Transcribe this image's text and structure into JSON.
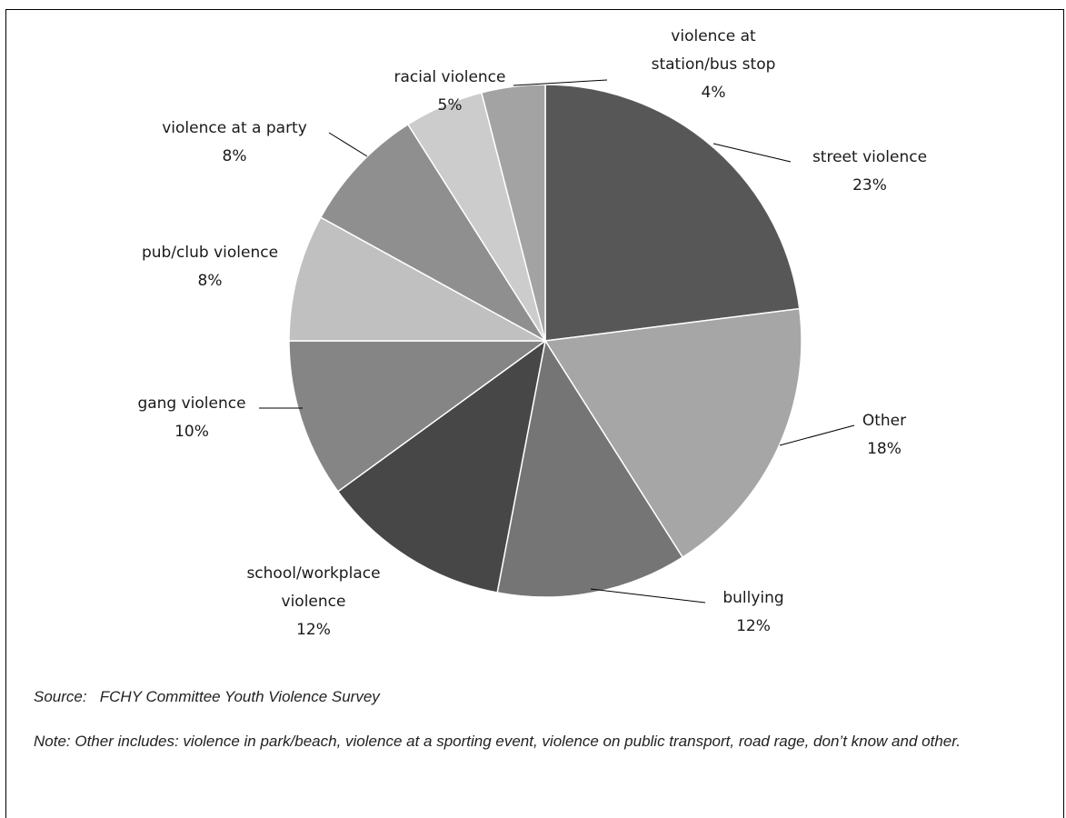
{
  "chart_data": {
    "type": "pie",
    "slices": [
      {
        "label": "street violence",
        "value": 23,
        "value_label": "23%",
        "color": "#575757"
      },
      {
        "label": "Other",
        "value": 18,
        "value_label": "18%",
        "color": "#a6a6a6"
      },
      {
        "label": "bullying",
        "value": 12,
        "value_label": "12%",
        "color": "#757575"
      },
      {
        "label": "school/workplace violence",
        "value": 12,
        "value_label": "12%",
        "color": "#474747"
      },
      {
        "label": "gang violence",
        "value": 10,
        "value_label": "10%",
        "color": "#858585"
      },
      {
        "label": "pub/club violence",
        "value": 8,
        "value_label": "8%",
        "color": "#c0c0c0"
      },
      {
        "label": "violence at a party",
        "value": 8,
        "value_label": "8%",
        "color": "#8f8f8f"
      },
      {
        "label": "racial violence",
        "value": 5,
        "value_label": "5%",
        "color": "#cccccc"
      },
      {
        "label": "violence at station/bus stop",
        "value": 4,
        "value_label": "4%",
        "color": "#a3a3a3"
      }
    ]
  },
  "footer": {
    "source": "Source:   FCHY Committee Youth Violence Survey",
    "note": "Note: Other includes: violence in park/beach, violence at a sporting event, violence on public transport, road rage, don’t know and other."
  }
}
